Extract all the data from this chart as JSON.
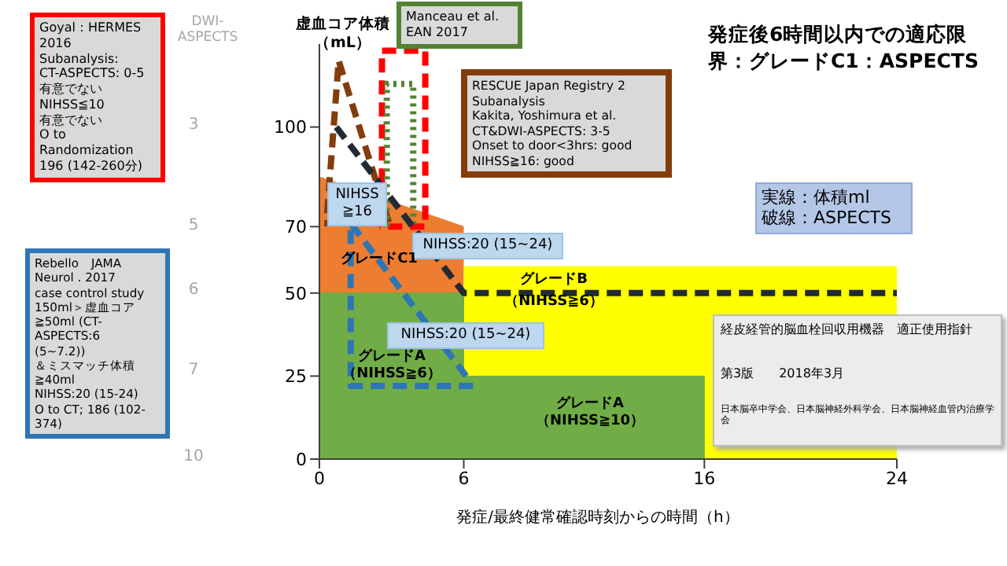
{
  "chart_data": {
    "type": "area",
    "title": "発症後6時間以内での適応限界：グレードC1：ASPECTS",
    "xlabel": "発症/最終健常確認時刻からの時間（h）",
    "ylabel": "虚血コア体積（mL）",
    "xlim": [
      0,
      24
    ],
    "xticks": [
      0,
      6,
      16,
      24
    ],
    "ylim": [
      0,
      125
    ],
    "yticks": [
      0,
      25,
      50,
      70,
      100
    ],
    "marker": "none",
    "series": [
      {
        "color": "#ed7d31",
        "x": [
          0,
          6
        ],
        "values": [
          85,
          70
        ]
      },
      {
        "color": "#ffff00",
        "x": [
          6,
          24
        ],
        "values": [
          58,
          58
        ]
      },
      {
        "color": "#70ad47",
        "x": [
          0,
          6,
          6,
          16,
          16
        ],
        "values": [
          50,
          50,
          25,
          25,
          0
        ]
      },
      {
        "type": "line",
        "color": "#843c0c",
        "line_style": "dashed",
        "x": [
          0.2,
          2.9,
          0.8,
          0.3
        ],
        "values": [
          71,
          71,
          120,
          72
        ]
      },
      {
        "type": "line",
        "color": "#ff0000",
        "line_style": "dashed",
        "x": [
          2.6,
          2.6,
          4.4,
          4.4,
          2.5
        ],
        "values": [
          70,
          123,
          123,
          70,
          70
        ]
      },
      {
        "type": "line",
        "color": "#548235",
        "line_style": "dotted",
        "x": [
          2.8,
          2.8,
          3.9,
          3.9
        ],
        "values": [
          70,
          113,
          113,
          70
        ]
      },
      {
        "type": "line",
        "color": "#2e75b6",
        "line_style": "dashed",
        "x": [
          6.1,
          1.3,
          1.3,
          6.5
        ],
        "values": [
          25,
          71,
          22,
          22
        ]
      },
      {
        "type": "line",
        "color": "#222a35",
        "line_style": "dashed",
        "x": [
          0.7,
          6,
          24
        ],
        "values": [
          100,
          50,
          50
        ]
      }
    ],
    "annotations": [
      "Goyal：HERMES\n2016\nSubanalysis:\nCT-ASPECTS: 0-5\n有意でない\nNIHSS≦10\n有意でない\nO to\nRandomization\n196 (142-260分)",
      "Rebello　JAMA\nNeurol . 2017\ncase control study\n150ml＞虚血コア\n≧50ml (CT-\nASPECTS:6\n(5~7.2))\n＆ミスマッチ体積\n≧40ml\nNIHSS:20 (15-24)\nO to CT; 186 (102-\n374)",
      "Manceau et al.\nEAN 2017",
      "RESCUE Japan Registry 2\nSubanalysis\nKakita, Yoshimura et al.\nCT&DWI-ASPECTS: 3-5\nOnset to door<3hrs: good\nNIHSS≧16: good",
      "実線：体積ml\n破線：ASPECTS",
      "経皮経管的脳血栓回収用機器　適正使用指針",
      "第3版　　2018年3月",
      "日本脳卒中学会、日本脳神経外科学会、日本脳神経血管内治療学会",
      "NIHSS\n≧16",
      "NIHSS:20 (15~24)",
      "NIHSS:20 (15~24)",
      "グレードC1",
      "グレードB\n（NIHSS≧6）",
      "グレードA\n（NIHSS≧6）",
      "グレードA\n（NIHSS≧10）",
      "DWI-ASPECTS",
      "3",
      "5",
      "6",
      "7",
      "10"
    ]
  }
}
